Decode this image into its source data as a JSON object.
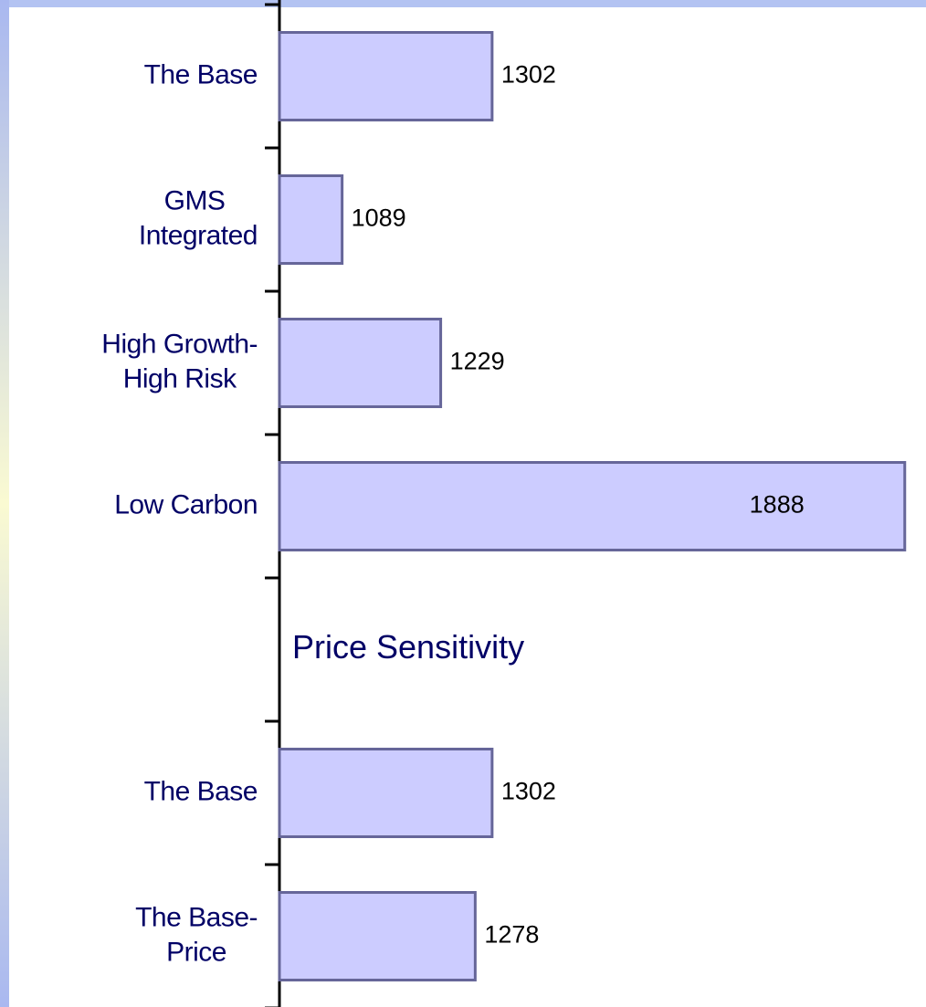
{
  "chart_data": {
    "type": "hbar",
    "categories": [
      "The Base",
      "GMS Integrated",
      "High Growth-High Risk",
      "Low Carbon",
      null,
      "The Base",
      "The Base-Price"
    ],
    "values": [
      1302,
      1089,
      1229,
      1888,
      null,
      1302,
      1278
    ],
    "color": "#ccccff",
    "edge_color": "#666699",
    "xlim": [
      1000,
      1900
    ],
    "annotations": [
      "Price Sensitivity"
    ]
  }
}
